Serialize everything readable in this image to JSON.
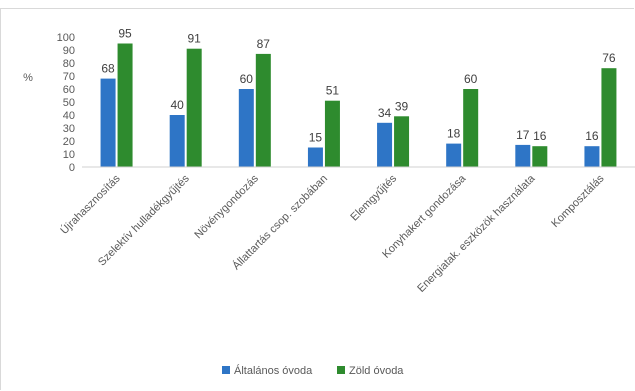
{
  "chart_data": {
    "type": "bar",
    "title": "",
    "xlabel": "",
    "ylabel": "%",
    "ylim": [
      0,
      100
    ],
    "yticks": [
      0,
      10,
      20,
      30,
      40,
      50,
      60,
      70,
      80,
      90,
      100
    ],
    "grid": false,
    "legend_position": "bottom",
    "categories": [
      "Újrahasznosítás",
      "Szelektív hulladékgyűjtés",
      "Növénygondozás",
      "Állattartás csop. szobában",
      "Elemgyűjtés",
      "Konyhakert gondozása",
      "Energiatak. eszközök használata",
      "Komposztálás"
    ],
    "series": [
      {
        "name": "Általános óvoda",
        "color": "#2e75c6",
        "values": [
          68,
          40,
          60,
          15,
          34,
          18,
          17,
          16
        ]
      },
      {
        "name": "Zöld óvoda",
        "color": "#2e8b2e",
        "values": [
          95,
          91,
          87,
          51,
          39,
          60,
          16,
          76
        ]
      }
    ]
  }
}
